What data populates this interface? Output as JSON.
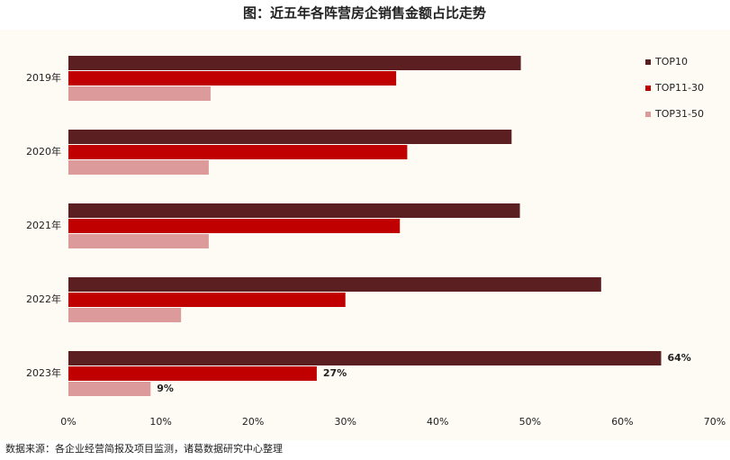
{
  "chart_data": {
    "type": "barh",
    "title": "图：近五年各阵营房企销售金额占比走势",
    "source": "数据来源：各企业经营简报及项目监测，诸葛数据研究中心整理",
    "categories": [
      "2019年",
      "2020年",
      "2021年",
      "2022年",
      "2023年"
    ],
    "series": [
      {
        "name": "TOP10",
        "color": "#5c1f21",
        "values": [
          49.0,
          48.0,
          48.9,
          57.7,
          64.2
        ],
        "value_labels": [
          null,
          null,
          null,
          null,
          "64%"
        ]
      },
      {
        "name": "TOP11-30",
        "color": "#c00000",
        "values": [
          35.5,
          36.7,
          35.9,
          30.0,
          26.9
        ],
        "value_labels": [
          null,
          null,
          null,
          null,
          "27%"
        ]
      },
      {
        "name": "TOP31-50",
        "color": "#dc9a9a",
        "values": [
          15.4,
          15.2,
          15.2,
          12.2,
          8.9
        ],
        "value_labels": [
          null,
          null,
          null,
          null,
          "9%"
        ]
      }
    ],
    "xlim": [
      0,
      70
    ],
    "xticks": [
      {
        "value": 0,
        "label": "0%"
      },
      {
        "value": 10,
        "label": "10%"
      },
      {
        "value": 20,
        "label": "20%"
      },
      {
        "value": 30,
        "label": "30%"
      },
      {
        "value": 40,
        "label": "40%"
      },
      {
        "value": 50,
        "label": "50%"
      },
      {
        "value": 60,
        "label": "60%"
      },
      {
        "value": 70,
        "label": "70%"
      }
    ],
    "legend": "right"
  }
}
